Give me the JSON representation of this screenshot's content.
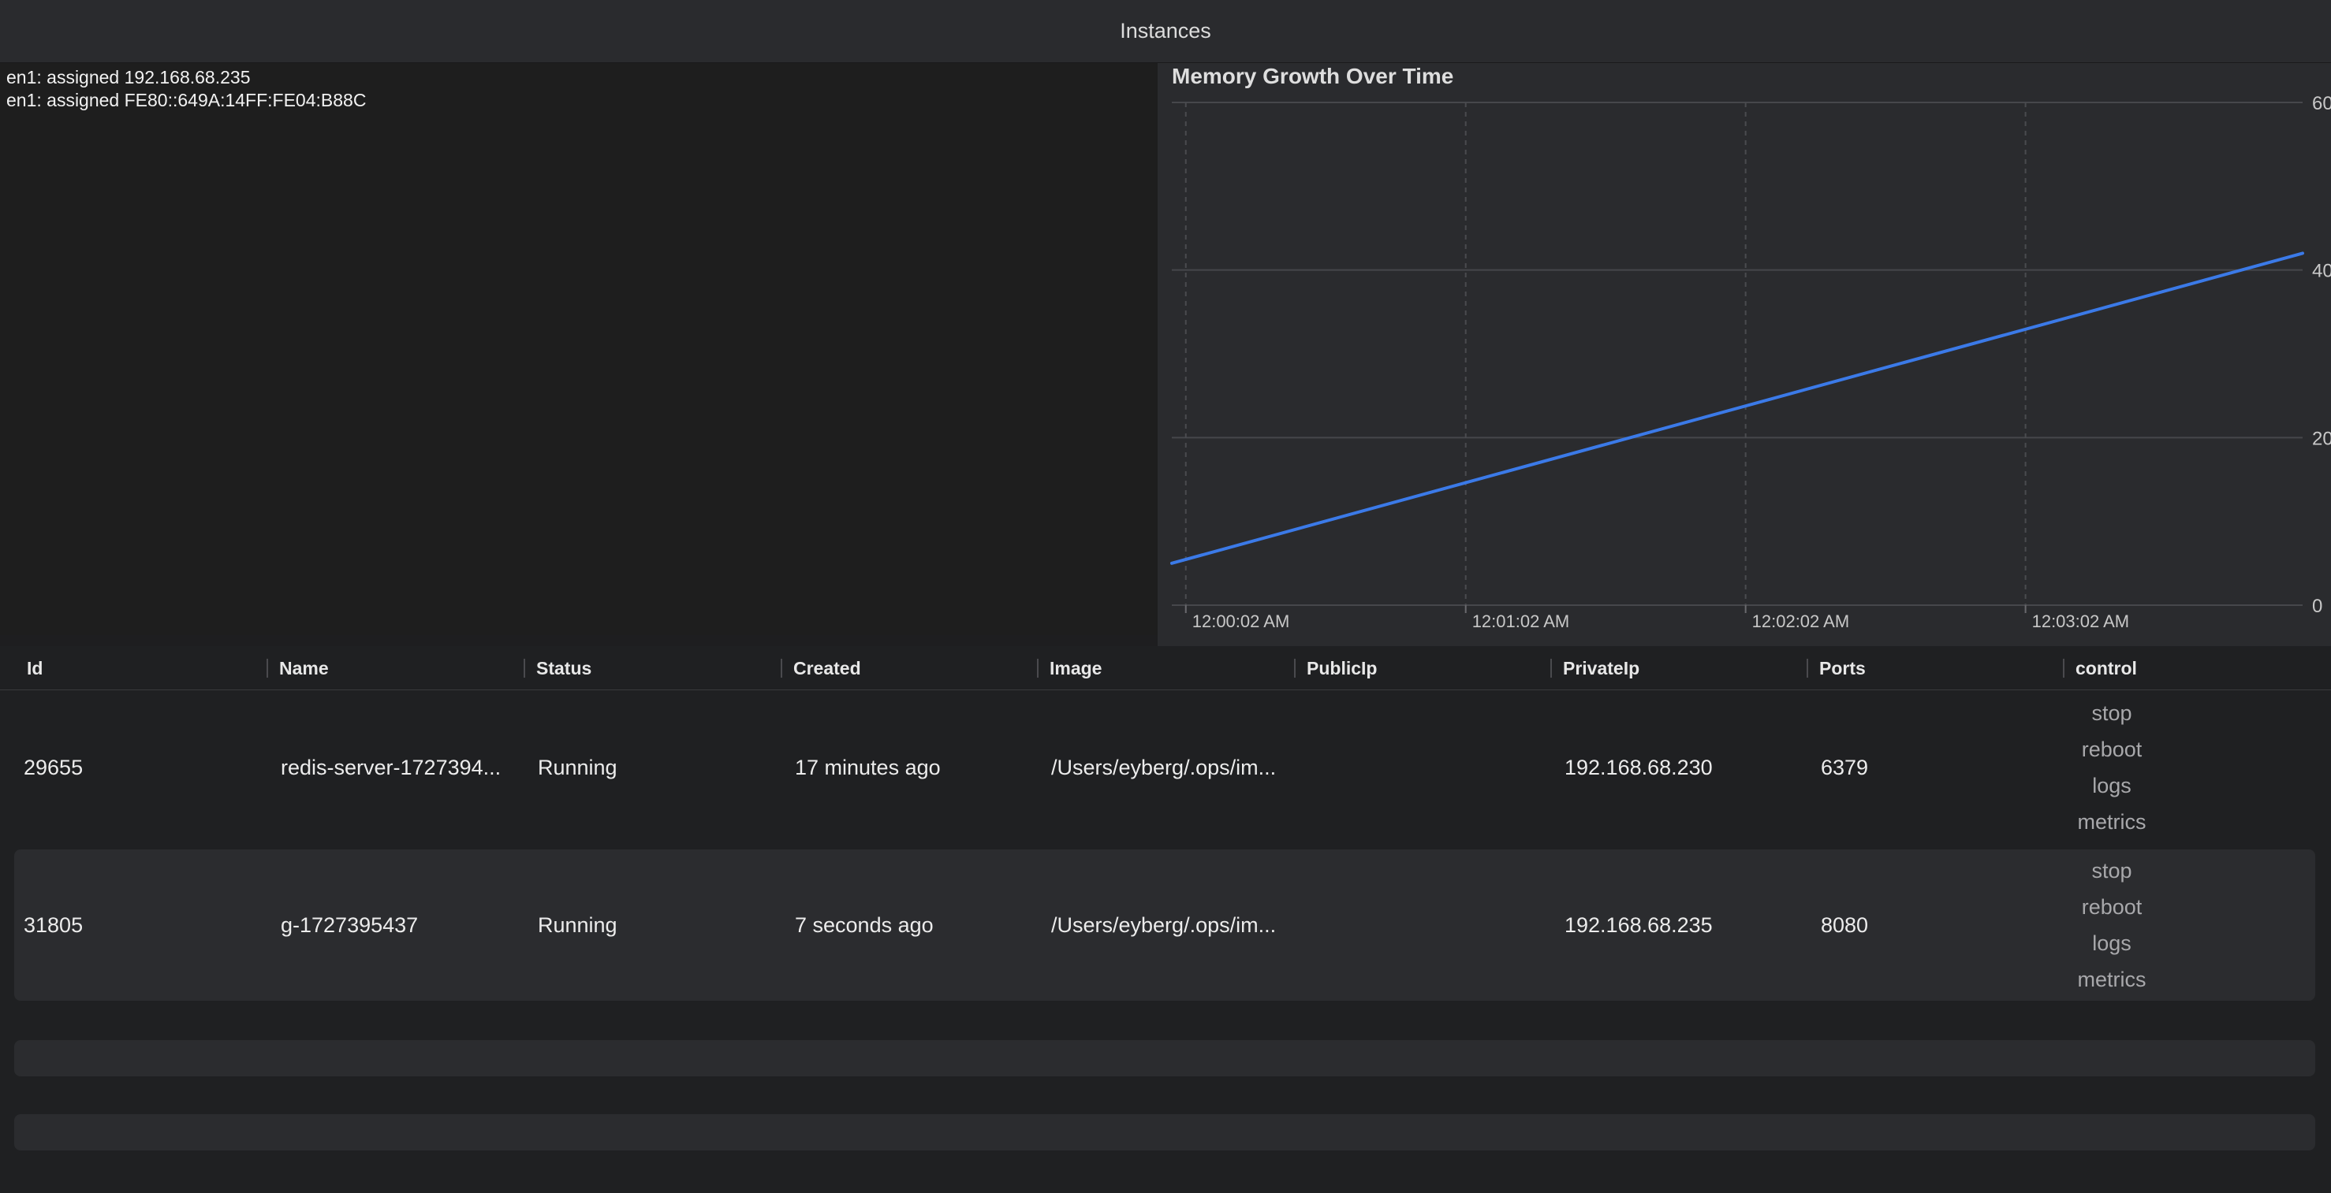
{
  "window": {
    "title": "Instances"
  },
  "console": {
    "lines": [
      "en1: assigned 192.168.68.235",
      "en1: assigned FE80::649A:14FF:FE04:B88C"
    ]
  },
  "chart_data": {
    "type": "line",
    "title": "Memory Growth Over Time",
    "xlabel": "",
    "ylabel": "",
    "x_ticks": [
      "12:00:02 AM",
      "12:01:02 AM",
      "12:02:02 AM",
      "12:03:02 AM"
    ],
    "y_ticks": [
      "0",
      "20",
      "40",
      "60"
    ],
    "ylim": [
      0,
      60
    ],
    "x_minutes": [
      -0.05,
      3.99
    ],
    "series": [
      {
        "values": [
          5,
          42
        ],
        "x": [
          -0.05,
          3.99
        ]
      }
    ],
    "line_color": "#3b7ae8",
    "grid": true
  },
  "table": {
    "columns": [
      "Id",
      "Name",
      "Status",
      "Created",
      "Image",
      "PublicIp",
      "PrivateIp",
      "Ports",
      "control"
    ],
    "rows": [
      {
        "id": "29655",
        "name": "redis-server-1727394...",
        "status": "Running",
        "created": "17 minutes ago",
        "image": "/Users/eyberg/.ops/im...",
        "public_ip": "",
        "private_ip": "192.168.68.230",
        "ports": "6379",
        "controls": [
          "stop",
          "reboot",
          "logs",
          "metrics"
        ]
      },
      {
        "id": "31805",
        "name": "g-1727395437",
        "status": "Running",
        "created": "7 seconds ago",
        "image": "/Users/eyberg/.ops/im...",
        "public_ip": "",
        "private_ip": "192.168.68.235",
        "ports": "8080",
        "controls": [
          "stop",
          "reboot",
          "logs",
          "metrics"
        ]
      }
    ]
  }
}
